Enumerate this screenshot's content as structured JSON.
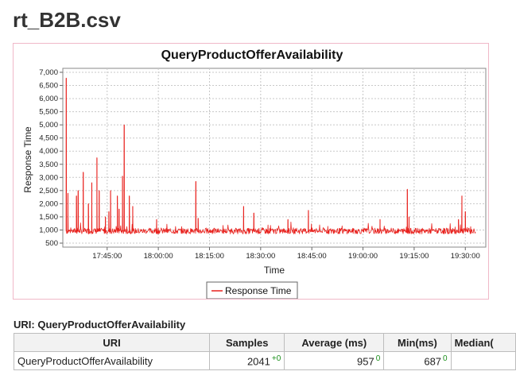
{
  "page": {
    "title": "rt_B2B.csv"
  },
  "chart_data": {
    "type": "line",
    "title": "QueryProductOfferAvailability",
    "xlabel": "Time",
    "ylabel": "Response Time",
    "x_ticks": [
      "17:45:00",
      "18:00:00",
      "18:15:00",
      "18:30:00",
      "18:45:00",
      "19:00:00",
      "19:15:00",
      "19:30:00"
    ],
    "y_ticks": [
      "500",
      "1,000",
      "1,500",
      "2,000",
      "2,500",
      "3,000",
      "3,500",
      "4,000",
      "4,500",
      "5,000",
      "5,500",
      "6,000",
      "6,500",
      "7,000"
    ],
    "ylim": [
      500,
      7000
    ],
    "xlim_minutes_of_day": [
      1052,
      1176
    ],
    "grid": true,
    "legend_position": "bottom",
    "series": [
      {
        "name": "Response Time",
        "color": "#e8201c",
        "baseline_ms": 960,
        "noise_ms": 110,
        "x_time": [
          "17:33:00",
          "17:33:30",
          "17:36:00",
          "17:36:30",
          "17:38:00",
          "17:39:30",
          "17:40:30",
          "17:42:00",
          "17:42:40",
          "17:44:30",
          "17:45:30",
          "17:46:00",
          "17:48:00",
          "17:48:30",
          "17:49:30",
          "17:50:00",
          "17:51:30",
          "17:52:30",
          "17:59:30",
          "18:11:00",
          "18:11:40",
          "18:25:00",
          "18:28:00",
          "18:38:00",
          "18:44:00",
          "19:05:00",
          "19:13:00",
          "19:13:30",
          "19:28:00",
          "19:29:00",
          "19:30:00"
        ],
        "spikes_ms": [
          6780,
          2400,
          2300,
          2500,
          3200,
          2000,
          2800,
          3750,
          2500,
          1500,
          1700,
          2500,
          2300,
          1800,
          3050,
          5000,
          2300,
          1900,
          1400,
          2850,
          1450,
          1900,
          1650,
          1400,
          1750,
          1400,
          2550,
          1500,
          1400,
          2300,
          1700
        ]
      }
    ]
  },
  "table": {
    "heading": "URI: QueryProductOfferAvailability",
    "columns": [
      "URI",
      "Samples",
      "Average (ms)",
      "Min(ms)",
      "Median("
    ],
    "rows": [
      {
        "uri": "QueryProductOfferAvailability",
        "samples": "2041",
        "samples_delta": "+0",
        "average": "957",
        "average_delta": "0",
        "min": "687",
        "min_delta": "0",
        "median": ""
      }
    ]
  }
}
